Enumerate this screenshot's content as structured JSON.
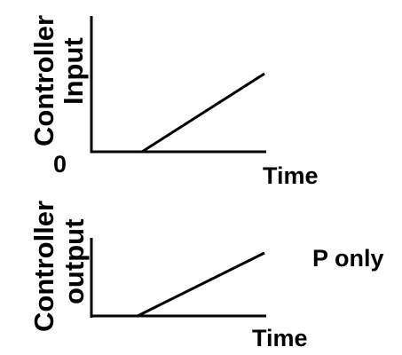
{
  "top_graph": {
    "ylabel_line1": "Controller",
    "ylabel_line2": "Input",
    "origin_label": "0",
    "xlabel": "Time"
  },
  "bottom_graph": {
    "ylabel_line1": "Controller",
    "ylabel_line2": "output",
    "xlabel": "Time"
  },
  "annotation": "P only",
  "colors": {
    "ink": "#000000",
    "background": "#ffffff"
  }
}
